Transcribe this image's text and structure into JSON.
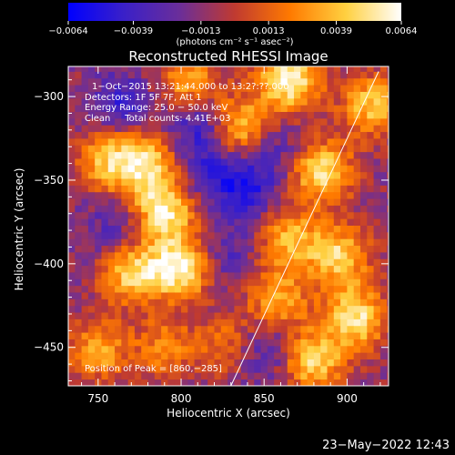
{
  "chart_data": {
    "type": "heatmap",
    "title": "Reconstructed RHESSI Image",
    "xlabel": "Heliocentric X (arcsec)",
    "ylabel": "Heliocentric Y (arcsec)",
    "xlim": [
      732,
      925
    ],
    "ylim": [
      -473,
      -282
    ],
    "x_ticks": [
      750,
      800,
      850,
      900
    ],
    "x_tick_labels": [
      "750",
      "800",
      "850",
      "900"
    ],
    "y_ticks": [
      -300,
      -350,
      -400,
      -450
    ],
    "y_tick_labels": [
      "−300",
      "−350",
      "−400",
      "−450"
    ],
    "colorbar": {
      "min": -0.0064,
      "max": 0.0064,
      "ticks": [
        -0.0064,
        -0.0039,
        -0.0013,
        0.0013,
        0.0039,
        0.0064
      ],
      "tick_labels": [
        "−0.0064",
        "−0.0039",
        "−0.0013",
        "0.0013",
        "0.0039",
        "0.0064"
      ],
      "units_label": "(photons cm⁻² s⁻¹ asec⁻²)",
      "colors": [
        "#0000ff",
        "#3a20c8",
        "#6a2e9a",
        "#c03a30",
        "#ff7a00",
        "#ffd040",
        "#ffffff"
      ]
    },
    "annotations": [
      "1−Oct−2015 13:21:44.000 to 13:2?:??.000",
      "Detectors: 1F 5F 7F, Att 1",
      "Energy Range: 25.0 − 50.0 keV",
      "Clean     Total counts: 4.41E+03"
    ],
    "peak_label": "Position of Peak = [860,−285]",
    "limb_line": [
      [
        830,
        -473
      ],
      [
        919,
        -285
      ]
    ],
    "sources": [
      {
        "x": 790,
        "y": -368,
        "value": 0.0052
      },
      {
        "x": 800,
        "y": -402,
        "value": 0.006
      },
      {
        "x": 770,
        "y": -405,
        "value": 0.0045
      },
      {
        "x": 780,
        "y": -340,
        "value": 0.004
      },
      {
        "x": 835,
        "y": -318,
        "value": 0.0042
      },
      {
        "x": 757,
        "y": -338,
        "value": 0.0038
      },
      {
        "x": 805,
        "y": -290,
        "value": 0.0032
      },
      {
        "x": 865,
        "y": -290,
        "value": 0.0058
      },
      {
        "x": 885,
        "y": -345,
        "value": 0.0048
      },
      {
        "x": 895,
        "y": -395,
        "value": 0.0042
      },
      {
        "x": 905,
        "y": -432,
        "value": 0.005
      },
      {
        "x": 880,
        "y": -458,
        "value": 0.0045
      },
      {
        "x": 858,
        "y": -422,
        "value": 0.0032
      },
      {
        "x": 865,
        "y": -385,
        "value": 0.0034
      },
      {
        "x": 750,
        "y": -452,
        "value": 0.003
      },
      {
        "x": 915,
        "y": -305,
        "value": 0.004
      },
      {
        "x": 790,
        "y": -450,
        "value": 0.0022
      },
      {
        "x": 828,
        "y": -448,
        "value": 0.0018
      }
    ],
    "holes": [
      {
        "x": 812,
        "y": -318,
        "value": -0.0045
      },
      {
        "x": 765,
        "y": -305,
        "value": -0.004
      },
      {
        "x": 838,
        "y": -355,
        "value": -0.0048
      },
      {
        "x": 815,
        "y": -345,
        "value": -0.0035
      },
      {
        "x": 850,
        "y": -450,
        "value": -0.0038
      },
      {
        "x": 825,
        "y": -395,
        "value": -0.0034
      },
      {
        "x": 855,
        "y": -330,
        "value": -0.0032
      },
      {
        "x": 760,
        "y": -380,
        "value": -0.0032
      }
    ]
  },
  "footer": {
    "timestamp": "23−May−2022 12:43"
  }
}
